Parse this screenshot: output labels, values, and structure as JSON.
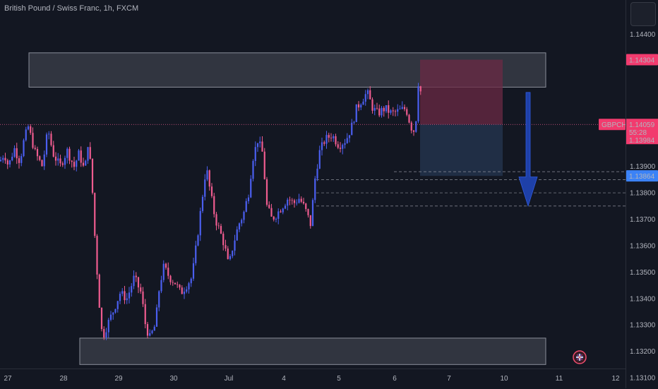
{
  "window": {
    "title": "British Pound / Swiss Franc, 1h, FXCM"
  },
  "colors": {
    "background": "#131722",
    "bull": "#4b5ff0",
    "bear": "#ef5c8f",
    "zone_fill": "#4a4e5a",
    "sl_zone": "#6b2a44",
    "tp_zone": "#24344f",
    "arrow": "#1e40a8",
    "price_label": "#f23b6e",
    "target_label": "#3b82f6"
  },
  "chart_data": {
    "type": "candlestick",
    "symbol": "GBPCHF",
    "timeframe": "1h",
    "ylim": [
      1.1306,
      1.1453
    ],
    "y_ticks": [
      "1.13100",
      "1.13200",
      "1.13300",
      "1.13400",
      "1.13500",
      "1.13600",
      "1.13700",
      "1.13800",
      "1.13900",
      "1.14400"
    ],
    "x_ticks": [
      "27",
      "28",
      "29",
      "30",
      "Jul",
      "4",
      "5",
      "6",
      "7",
      "10",
      "11",
      "12"
    ],
    "last_price": 1.13984,
    "zones": [
      {
        "from": 1.142,
        "to": 1.1433
      },
      {
        "from": 1.1315,
        "to": 1.1325
      }
    ],
    "position": {
      "direction": "short",
      "entry": 1.14059,
      "stop": 1.14304,
      "target": 1.13864
    },
    "target_levels": [
      1.1388,
      1.1385,
      1.138,
      1.1375
    ],
    "price_labels": {
      "stop": "1.14304",
      "symbol": "GBPCHF",
      "entry": "1.14059",
      "countdown": "55:28",
      "last": "1.13984",
      "target": "1.13864"
    },
    "approx_path": [
      [
        0,
        1.1392
      ],
      [
        6,
        1.1395
      ],
      [
        12,
        1.139
      ],
      [
        20,
        1.1397
      ],
      [
        28,
        1.1392
      ],
      [
        34,
        1.14
      ],
      [
        40,
        1.1405
      ],
      [
        50,
        1.1395
      ],
      [
        60,
        1.139
      ],
      [
        68,
        1.1404
      ],
      [
        75,
        1.1395
      ],
      [
        85,
        1.139
      ],
      [
        95,
        1.1396
      ],
      [
        105,
        1.139
      ],
      [
        112,
        1.1395
      ],
      [
        120,
        1.1388
      ],
      [
        125,
        1.14
      ],
      [
        130,
        1.1385
      ],
      [
        135,
        1.136
      ],
      [
        140,
        1.134
      ],
      [
        145,
        1.1325
      ],
      [
        152,
        1.133
      ],
      [
        160,
        1.1335
      ],
      [
        170,
        1.1342
      ],
      [
        180,
        1.134
      ],
      [
        190,
        1.1348
      ],
      [
        200,
        1.1342
      ],
      [
        206,
        1.133
      ],
      [
        212,
        1.1325
      ],
      [
        220,
        1.133
      ],
      [
        226,
        1.1345
      ],
      [
        232,
        1.1352
      ],
      [
        240,
        1.1348
      ],
      [
        248,
        1.1346
      ],
      [
        256,
        1.1342
      ],
      [
        264,
        1.1345
      ],
      [
        272,
        1.1348
      ],
      [
        278,
        1.136
      ],
      [
        285,
        1.1375
      ],
      [
        292,
        1.139
      ],
      [
        298,
        1.138
      ],
      [
        305,
        1.137
      ],
      [
        312,
        1.1365
      ],
      [
        318,
        1.136
      ],
      [
        324,
        1.1352
      ],
      [
        330,
        1.136
      ],
      [
        338,
        1.1368
      ],
      [
        345,
        1.1372
      ],
      [
        352,
        1.138
      ],
      [
        358,
        1.1393
      ],
      [
        365,
        1.14
      ],
      [
        372,
        1.1395
      ],
      [
        378,
        1.1375
      ],
      [
        385,
        1.137
      ],
      [
        392,
        1.1372
      ],
      [
        400,
        1.1375
      ],
      [
        408,
        1.1378
      ],
      [
        416,
        1.1376
      ],
      [
        424,
        1.1378
      ],
      [
        432,
        1.1374
      ],
      [
        440,
        1.1368
      ],
      [
        446,
        1.1385
      ],
      [
        452,
        1.1395
      ],
      [
        460,
        1.14
      ],
      [
        470,
        1.1402
      ],
      [
        480,
        1.1398
      ],
      [
        490,
        1.14
      ],
      [
        498,
        1.1405
      ],
      [
        505,
        1.1412
      ],
      [
        512,
        1.1415
      ],
      [
        520,
        1.1418
      ],
      [
        528,
        1.1412
      ],
      [
        535,
        1.141
      ],
      [
        545,
        1.1412
      ],
      [
        555,
        1.141
      ],
      [
        565,
        1.1411
      ],
      [
        575,
        1.1412
      ],
      [
        582,
        1.1405
      ],
      [
        588,
        1.1403
      ],
      [
        594,
        1.1428
      ],
      [
        598,
        1.1406
      ]
    ]
  }
}
